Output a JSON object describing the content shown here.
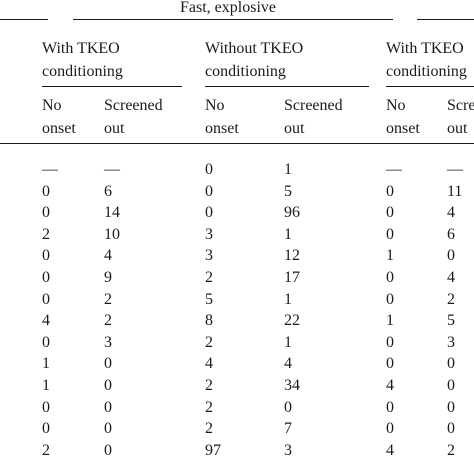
{
  "table": {
    "top_header": "Fast, explosive",
    "group_headers": [
      [
        "With TKEO",
        "conditioning"
      ],
      [
        "Without TKEO",
        "conditioning"
      ],
      [
        "With TKEO",
        "conditioning"
      ]
    ],
    "sub_headers": [
      [
        "No",
        "onset"
      ],
      [
        "Screened",
        "out"
      ],
      [
        "No",
        "onset"
      ],
      [
        "Screened",
        "out"
      ],
      [
        "No",
        "onset"
      ],
      [
        "Scre",
        "out"
      ]
    ],
    "rows": [
      [
        "—",
        "—",
        "0",
        "1",
        "—",
        "—"
      ],
      [
        "0",
        "6",
        "0",
        "5",
        "0",
        "11"
      ],
      [
        "0",
        "14",
        "0",
        "96",
        "0",
        "4"
      ],
      [
        "2",
        "10",
        "3",
        "1",
        "0",
        "6"
      ],
      [
        "0",
        "4",
        "3",
        "12",
        "1",
        "0"
      ],
      [
        "0",
        "9",
        "2",
        "17",
        "0",
        "4"
      ],
      [
        "0",
        "2",
        "5",
        "1",
        "0",
        "2"
      ],
      [
        "4",
        "2",
        "8",
        "22",
        "1",
        "5"
      ],
      [
        "0",
        "3",
        "2",
        "1",
        "0",
        "3"
      ],
      [
        "1",
        "0",
        "4",
        "4",
        "0",
        "0"
      ],
      [
        "1",
        "0",
        "2",
        "34",
        "4",
        "0"
      ],
      [
        "0",
        "0",
        "2",
        "0",
        "0",
        "0"
      ],
      [
        "0",
        "0",
        "2",
        "7",
        "0",
        "0"
      ],
      [
        "2",
        "0",
        "97",
        "3",
        "4",
        "2"
      ]
    ]
  }
}
